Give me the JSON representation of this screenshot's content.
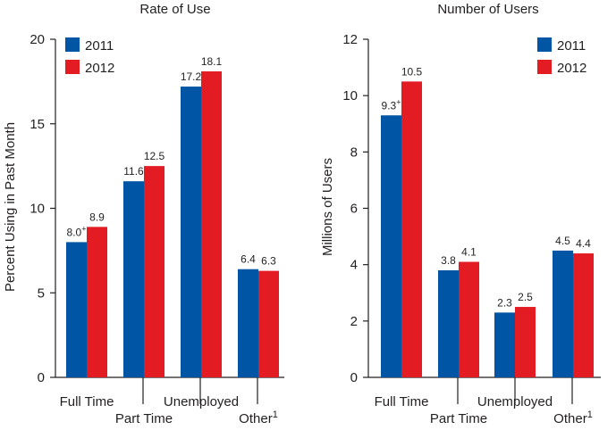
{
  "colors": {
    "series_2011": "#0055a4",
    "series_2012": "#e31b23",
    "axis": "#231f20",
    "text": "#231f20"
  },
  "chart_data": [
    {
      "type": "bar",
      "title": "Rate of Use",
      "xlabel": "",
      "ylabel": "Percent Using in Past Month",
      "ylim": [
        0,
        20
      ],
      "yticks": [
        0,
        5,
        10,
        15,
        20
      ],
      "categories": [
        "Full Time",
        "Part Time",
        "Unemployed",
        "Other"
      ],
      "category_superscripts": [
        "",
        "",
        "",
        "1"
      ],
      "series": [
        {
          "name": "2011",
          "values": [
            8.0,
            11.6,
            17.2,
            6.4
          ],
          "labels": [
            "8.0",
            "11.6",
            "17.2",
            "6.4"
          ],
          "label_superscripts": [
            "+",
            "",
            "",
            ""
          ]
        },
        {
          "name": "2012",
          "values": [
            8.9,
            12.5,
            18.1,
            6.3
          ],
          "labels": [
            "8.9",
            "12.5",
            "18.1",
            "6.3"
          ],
          "label_superscripts": [
            "",
            "",
            "",
            ""
          ]
        }
      ],
      "legend_position": "top-left"
    },
    {
      "type": "bar",
      "title": "Number of Users",
      "xlabel": "",
      "ylabel": "Millions of Users",
      "ylim": [
        0,
        12
      ],
      "yticks": [
        0,
        2,
        4,
        6,
        8,
        10,
        12
      ],
      "categories": [
        "Full Time",
        "Part Time",
        "Unemployed",
        "Other"
      ],
      "category_superscripts": [
        "",
        "",
        "",
        "1"
      ],
      "series": [
        {
          "name": "2011",
          "values": [
            9.3,
            3.8,
            2.3,
            4.5
          ],
          "labels": [
            "9.3",
            "3.8",
            "2.3",
            "4.5"
          ],
          "label_superscripts": [
            "+",
            "",
            "",
            ""
          ]
        },
        {
          "name": "2012",
          "values": [
            10.5,
            4.1,
            2.5,
            4.4
          ],
          "labels": [
            "10.5",
            "4.1",
            "2.5",
            "4.4"
          ],
          "label_superscripts": [
            "",
            "",
            "",
            ""
          ]
        }
      ],
      "legend_position": "top-right"
    }
  ]
}
